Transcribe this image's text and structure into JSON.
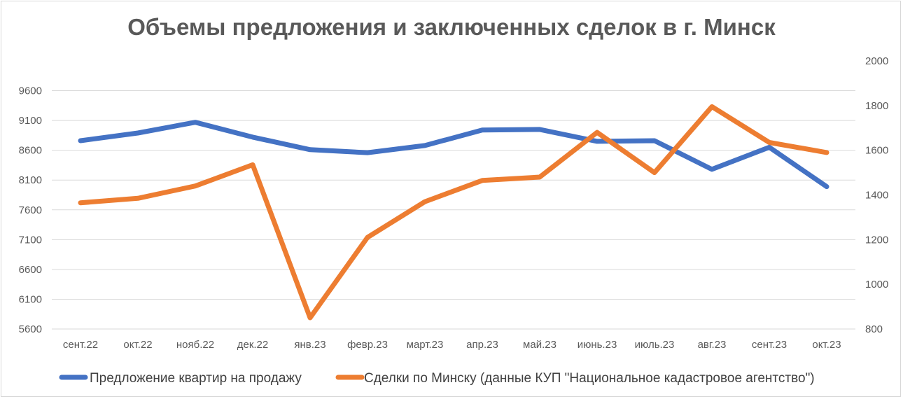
{
  "chart_data": {
    "type": "line",
    "title": "Объемы предложения и заключенных сделок в г. Минск",
    "categories": [
      "сент.22",
      "окт.22",
      "нояб.22",
      "дек.22",
      "янв.23",
      "февр.23",
      "март.23",
      "апр.23",
      "май.23",
      "июнь.23",
      "июль.23",
      "авг.23",
      "сент.23",
      "окт.23"
    ],
    "y_left": {
      "ylim": [
        5600,
        10100
      ],
      "ticks": [
        "5600",
        "6100",
        "6600",
        "7100",
        "7600",
        "8100",
        "8600",
        "9100",
        "9600"
      ]
    },
    "y_right": {
      "ylim": [
        800,
        2000
      ],
      "ticks": [
        "800",
        "1000",
        "1200",
        "1400",
        "1600",
        "1800",
        "2000"
      ]
    },
    "series": [
      {
        "name": "Предложение квартир на продажу",
        "axis": "left",
        "color": "#4472c4",
        "values": [
          8760,
          8890,
          9070,
          8820,
          8610,
          8560,
          8680,
          8940,
          8950,
          8750,
          8760,
          8280,
          8650,
          7990
        ]
      },
      {
        "name": "Сделки по Минску (данные КУП \"Национальное кадастровое агентство\")",
        "axis": "right",
        "color": "#ed7d31",
        "values": [
          1365,
          1385,
          1440,
          1535,
          850,
          1210,
          1370,
          1465,
          1480,
          1680,
          1500,
          1795,
          1635,
          1590
        ]
      }
    ],
    "grid": true,
    "legend_position": "bottom"
  }
}
